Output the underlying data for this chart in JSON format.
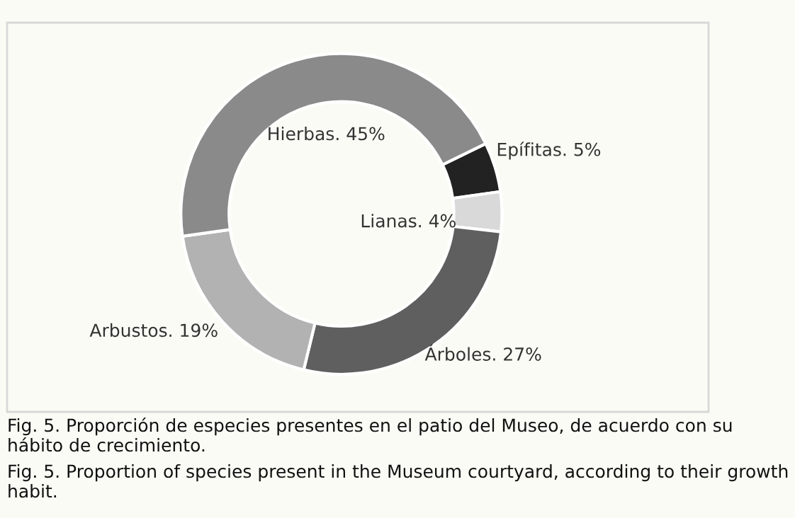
{
  "chart_data": {
    "type": "donut",
    "categories": [
      "Epífitas.",
      "Lianas.",
      "Árboles.",
      "Arbustos.",
      "Hierbas."
    ],
    "values": [
      5,
      4,
      27,
      19,
      45
    ],
    "colors": [
      "#222222",
      "#d9d9d9",
      "#5f5f5f",
      "#b2b2b2",
      "#8a8a8a"
    ],
    "value_labels": [
      "5%",
      "4%",
      "27%",
      "19%",
      "45%"
    ],
    "legend": false,
    "annotations": [
      "Fig. 5. Proporción de especies presentes en el patio del Museo, de acuerdo con su hábito de crecimiento.",
      "Fig. 5. Proportion of species present in the Museum courtyard, according to their growth habit."
    ]
  }
}
